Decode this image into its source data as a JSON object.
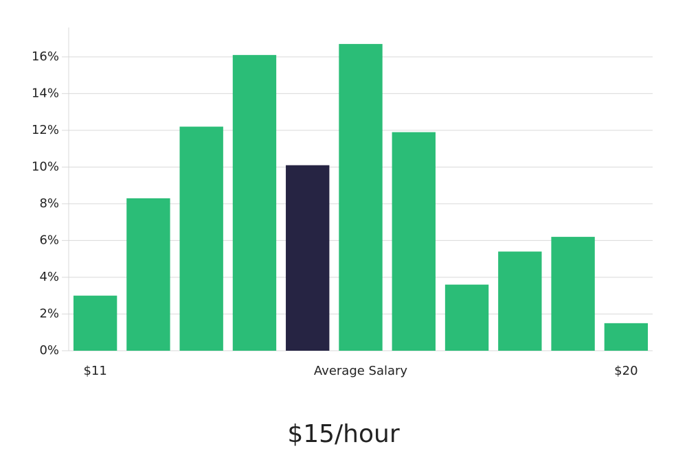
{
  "chart_data": {
    "type": "bar",
    "subtitle": "$15/hour",
    "categories": [
      "$11",
      null,
      null,
      null,
      null,
      "Average Salary",
      null,
      null,
      null,
      null,
      "$20"
    ],
    "values": [
      3.0,
      8.3,
      12.2,
      16.1,
      10.1,
      16.7,
      11.9,
      3.6,
      5.4,
      6.2,
      1.5
    ],
    "colors": [
      "#2bbd77",
      "#2bbd77",
      "#2bbd77",
      "#2bbd77",
      "#262443",
      "#2bbd77",
      "#2bbd77",
      "#2bbd77",
      "#2bbd77",
      "#2bbd77",
      "#2bbd77"
    ],
    "ylim": [
      0,
      17.6
    ],
    "yticks": [
      {
        "value": 0,
        "label": "0%"
      },
      {
        "value": 2,
        "label": "2%"
      },
      {
        "value": 4,
        "label": "4%"
      },
      {
        "value": 6,
        "label": "6%"
      },
      {
        "value": 8,
        "label": "8%"
      },
      {
        "value": 10,
        "label": "10%"
      },
      {
        "value": 12,
        "label": "12%"
      },
      {
        "value": 14,
        "label": "14%"
      },
      {
        "value": 16,
        "label": "16%"
      }
    ],
    "grid": true
  }
}
